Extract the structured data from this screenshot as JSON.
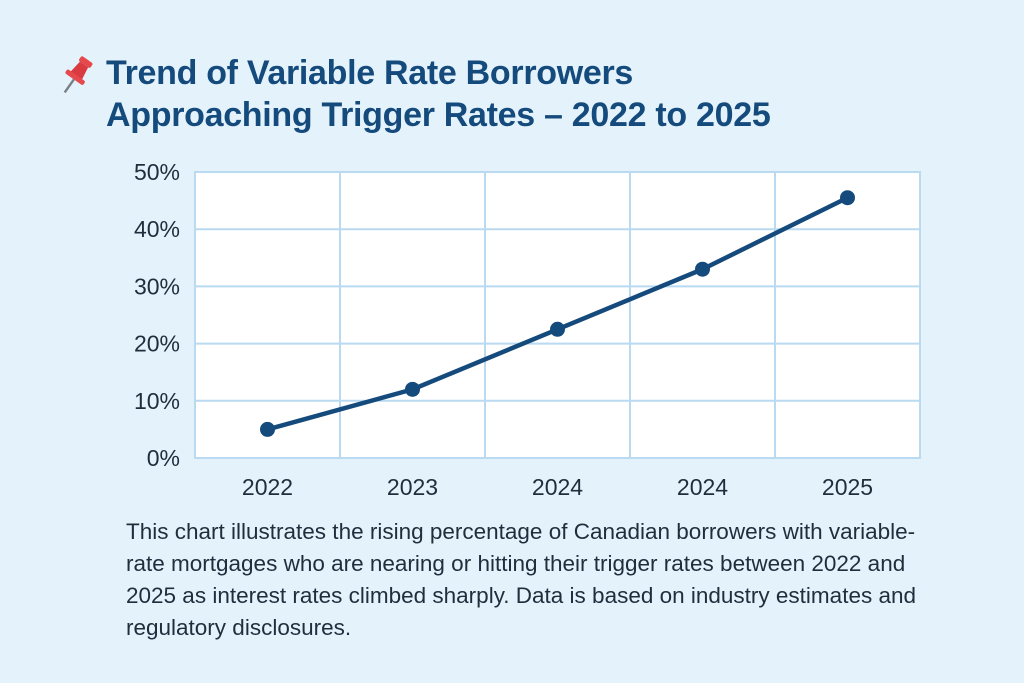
{
  "pin_icon": "pushpin-icon",
  "title_lines": [
    "Trend of Variable Rate Borrowers",
    "Approaching Trigger Rates – 2022 to 2025"
  ],
  "caption": "This chart illustrates the rising percentage of Canadian borrowers with variable-rate mortgages who are nearing or hitting their trigger rates between 2022 and 2025 as interest rates climbed sharply. Data is based on industry estimates and regulatory disclosures.",
  "colors": {
    "background": "#e4f3fb",
    "title": "#154a7c",
    "line": "#154a7c",
    "grid": "#b9daf0",
    "plot_bg": "#ffffff",
    "pin": "#e5484d"
  },
  "chart_data": {
    "type": "line",
    "title": "Trend of Variable Rate Borrowers Approaching Trigger Rates – 2022 to 2025",
    "categories": [
      "2022",
      "2023",
      "2024",
      "2024",
      "2025"
    ],
    "series": [
      {
        "values": [
          5,
          12,
          22.5,
          33,
          45.5
        ]
      }
    ],
    "ylim": [
      0,
      50
    ],
    "yticks": [
      0,
      10,
      20,
      30,
      40,
      50
    ],
    "ytick_labels": [
      "0%",
      "10%",
      "20%",
      "30%",
      "40%",
      "50%"
    ],
    "xlabel": "",
    "ylabel": "",
    "grid": true,
    "legend": "none"
  }
}
